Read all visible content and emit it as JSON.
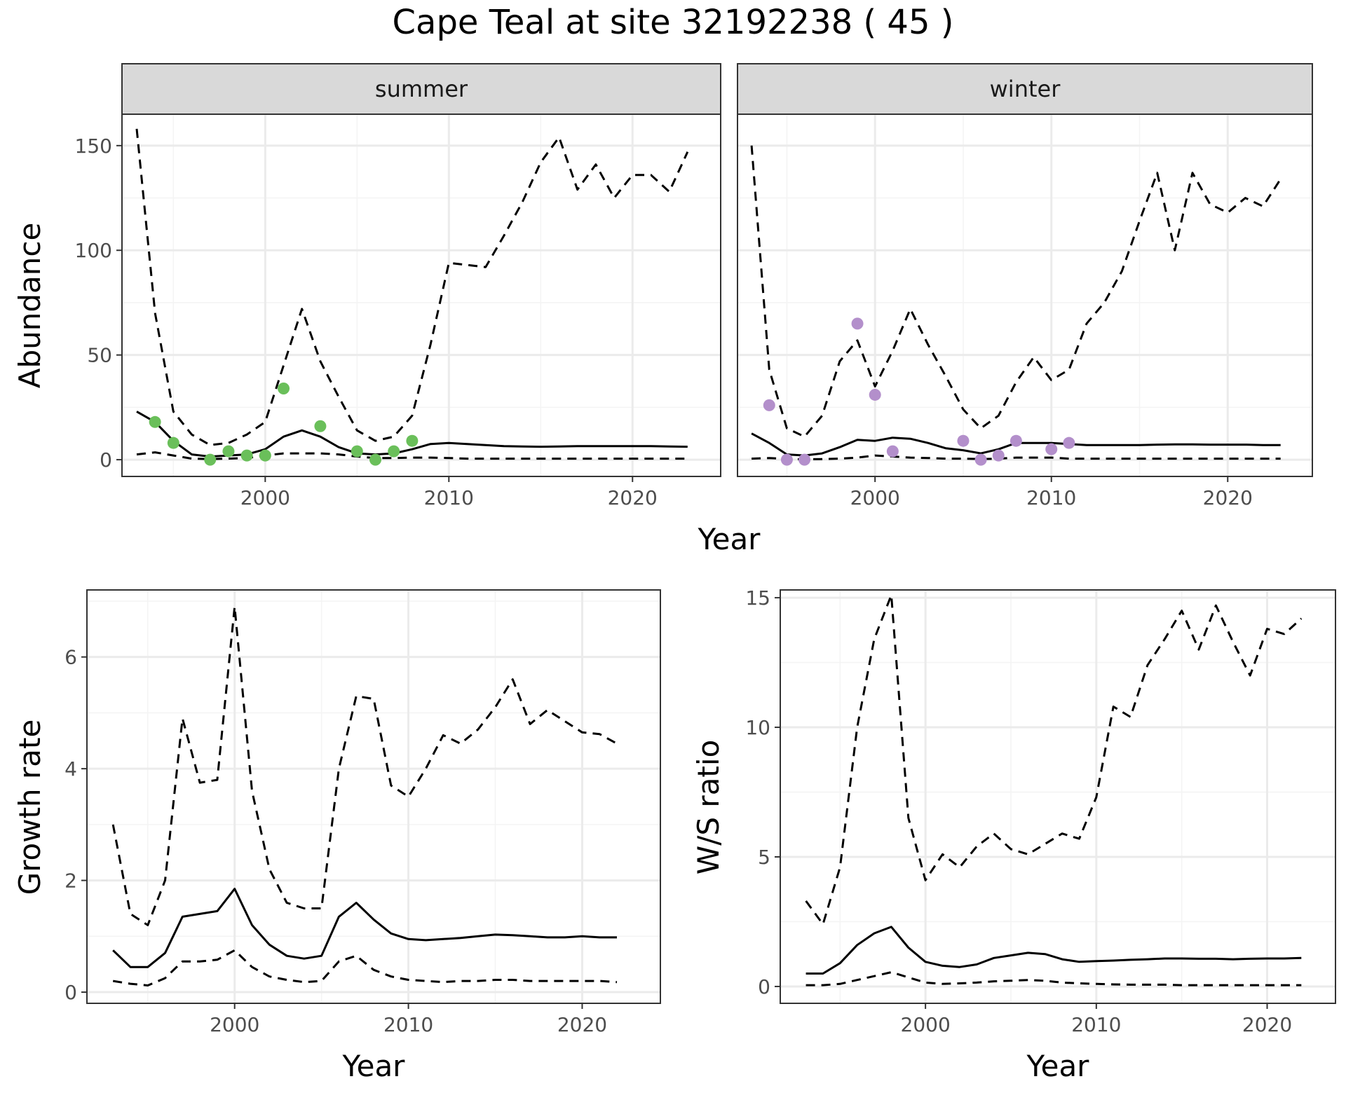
{
  "title": "Cape Teal at site 32192238 ( 45 )",
  "colors": {
    "summer_points": "#6ABF5A",
    "winter_points": "#B38FCB",
    "line": "#000000",
    "grid_major": "#EBEBEB",
    "grid_minor": "#F4F4F4",
    "strip_bg": "#D9D9D9",
    "panel_border": "#333333",
    "tick_text": "#4D4D4D"
  },
  "chart_data": [
    {
      "id": "summer",
      "type": "line",
      "strip_label": "summer",
      "xlabel": "Year",
      "ylabel": "Abundance",
      "xlim": [
        1992.2,
        2024.8
      ],
      "ylim": [
        -8,
        165
      ],
      "xticks": [
        2000,
        2010,
        2020
      ],
      "xticks_minor": [
        1995,
        2005,
        2015
      ],
      "yticks": [
        0,
        50,
        100,
        150
      ],
      "yticks_minor": [
        25,
        75,
        125
      ],
      "series": [
        {
          "name": "mean",
          "style": "solid",
          "x": [
            1993,
            1994,
            1995,
            1996,
            1997,
            1998,
            1999,
            2000,
            2001,
            2002,
            2003,
            2004,
            2005,
            2006,
            2007,
            2008,
            2009,
            2010,
            2011,
            2012,
            2013,
            2014,
            2015,
            2016,
            2017,
            2018,
            2019,
            2020,
            2021,
            2022,
            2023
          ],
          "y": [
            23,
            18,
            9,
            2.5,
            1.5,
            2,
            2.5,
            5,
            11,
            14,
            11,
            6,
            3,
            2.5,
            3,
            5,
            7.5,
            8,
            7.5,
            7,
            6.5,
            6.3,
            6.2,
            6.3,
            6.5,
            6.5,
            6.5,
            6.5,
            6.5,
            6.3,
            6.2
          ]
        },
        {
          "name": "upper",
          "style": "dashed",
          "x": [
            1993,
            1994,
            1995,
            1996,
            1997,
            1998,
            1999,
            2000,
            2001,
            2002,
            2003,
            2004,
            2005,
            2006,
            2007,
            2008,
            2009,
            2010,
            2011,
            2012,
            2013,
            2014,
            2015,
            2016,
            2017,
            2018,
            2019,
            2020,
            2021,
            2022,
            2023
          ],
          "y": [
            158,
            70,
            23,
            12,
            7,
            8,
            12,
            18,
            45,
            72,
            47,
            30,
            14,
            9,
            11,
            21,
            55,
            94,
            93,
            92,
            107,
            123,
            142,
            154,
            129,
            141,
            125,
            136,
            136,
            128,
            147
          ]
        },
        {
          "name": "lower",
          "style": "dashed",
          "x": [
            1993,
            1994,
            1995,
            1996,
            1997,
            1998,
            1999,
            2000,
            2001,
            2002,
            2003,
            2004,
            2005,
            2006,
            2007,
            2008,
            2009,
            2010,
            2011,
            2012,
            2013,
            2014,
            2015,
            2016,
            2017,
            2018,
            2019,
            2020,
            2021,
            2022,
            2023
          ],
          "y": [
            2.5,
            3.5,
            2,
            0.5,
            0.3,
            0.5,
            0.8,
            2,
            3,
            3,
            3,
            2.5,
            1.5,
            0.8,
            0.8,
            1,
            1,
            0.8,
            0.5,
            0.5,
            0.5,
            0.5,
            0.5,
            0.5,
            0.5,
            0.5,
            0.5,
            0.5,
            0.5,
            0.5,
            0.5
          ]
        }
      ],
      "points": {
        "x": [
          1994,
          1995,
          1997,
          1998,
          1999,
          2000,
          2001,
          2003,
          2005,
          2006,
          2007,
          2008
        ],
        "y": [
          18,
          8,
          0,
          4,
          2,
          2,
          34,
          16,
          4,
          0,
          4,
          9
        ]
      }
    },
    {
      "id": "winter",
      "type": "line",
      "strip_label": "winter",
      "xlabel": "Year",
      "ylabel": "",
      "xlim": [
        1992.2,
        2024.8
      ],
      "ylim": [
        -8,
        165
      ],
      "xticks": [
        2000,
        2010,
        2020
      ],
      "xticks_minor": [
        1995,
        2005,
        2015
      ],
      "yticks": [
        0,
        50,
        100,
        150
      ],
      "yticks_minor": [
        25,
        75,
        125
      ],
      "series": [
        {
          "name": "mean",
          "style": "solid",
          "x": [
            1993,
            1994,
            1995,
            1996,
            1997,
            1998,
            1999,
            2000,
            2001,
            2002,
            2003,
            2004,
            2005,
            2006,
            2007,
            2008,
            2009,
            2010,
            2011,
            2012,
            2013,
            2014,
            2015,
            2016,
            2017,
            2018,
            2019,
            2020,
            2021,
            2022,
            2023
          ],
          "y": [
            12.5,
            8,
            2.5,
            2,
            3,
            6,
            9.5,
            9,
            10.5,
            10,
            8,
            5.5,
            4.5,
            3,
            5,
            8,
            8,
            8,
            7.5,
            7,
            7,
            7,
            7,
            7.2,
            7.3,
            7.3,
            7.2,
            7.2,
            7.2,
            7,
            7
          ]
        },
        {
          "name": "upper",
          "style": "dashed",
          "x": [
            1993,
            1994,
            1995,
            1996,
            1997,
            1998,
            1999,
            2000,
            2001,
            2002,
            2003,
            2004,
            2005,
            2006,
            2007,
            2008,
            2009,
            2010,
            2011,
            2012,
            2013,
            2014,
            2015,
            2016,
            2017,
            2018,
            2019,
            2020,
            2021,
            2022,
            2023
          ],
          "y": [
            150,
            43,
            15,
            11,
            21,
            47,
            57,
            35,
            52,
            72,
            55,
            40,
            24,
            15,
            21,
            37,
            49,
            38,
            43,
            65,
            75,
            90,
            114,
            137,
            100,
            137,
            122,
            118,
            125,
            121,
            134
          ]
        },
        {
          "name": "lower",
          "style": "dashed",
          "x": [
            1993,
            1994,
            1995,
            1996,
            1997,
            1998,
            1999,
            2000,
            2001,
            2002,
            2003,
            2004,
            2005,
            2006,
            2007,
            2008,
            2009,
            2010,
            2011,
            2012,
            2013,
            2014,
            2015,
            2016,
            2017,
            2018,
            2019,
            2020,
            2021,
            2022,
            2023
          ],
          "y": [
            0.5,
            0.8,
            0.3,
            0.2,
            0.3,
            0.5,
            1,
            2,
            1.5,
            1,
            0.8,
            0.5,
            0.5,
            0.3,
            0.5,
            1,
            1,
            1,
            0.5,
            0.5,
            0.5,
            0.5,
            0.5,
            0.5,
            0.5,
            0.5,
            0.5,
            0.5,
            0.5,
            0.5,
            0.5
          ]
        }
      ],
      "points": {
        "x": [
          1994,
          1995,
          1996,
          1999,
          2000,
          2001,
          2005,
          2006,
          2007,
          2008,
          2010,
          2011
        ],
        "y": [
          26,
          0,
          0,
          65,
          31,
          4,
          9,
          0,
          2,
          9,
          5,
          8
        ]
      }
    },
    {
      "id": "growth",
      "type": "line",
      "strip_label": "",
      "xlabel": "Year",
      "ylabel": "Growth rate",
      "xlim": [
        1991.5,
        2024.5
      ],
      "ylim": [
        -0.2,
        7.2
      ],
      "xticks": [
        2000,
        2010,
        2020
      ],
      "xticks_minor": [
        1995,
        2005,
        2015
      ],
      "yticks": [
        0,
        2,
        4,
        6
      ],
      "yticks_minor": [
        1,
        3,
        5,
        7
      ],
      "series": [
        {
          "name": "mean",
          "style": "solid",
          "x": [
            1993,
            1994,
            1995,
            1996,
            1997,
            1998,
            1999,
            2000,
            2001,
            2002,
            2003,
            2004,
            2005,
            2006,
            2007,
            2008,
            2009,
            2010,
            2011,
            2012,
            2013,
            2014,
            2015,
            2016,
            2017,
            2018,
            2019,
            2020,
            2021,
            2022
          ],
          "y": [
            0.75,
            0.45,
            0.45,
            0.7,
            1.35,
            1.4,
            1.45,
            1.85,
            1.2,
            0.85,
            0.65,
            0.6,
            0.65,
            1.35,
            1.6,
            1.3,
            1.05,
            0.95,
            0.93,
            0.95,
            0.97,
            1,
            1.03,
            1.02,
            1,
            0.98,
            0.98,
            1,
            0.98,
            0.98
          ]
        },
        {
          "name": "upper",
          "style": "dashed",
          "x": [
            1993,
            1994,
            1995,
            1996,
            1997,
            1998,
            1999,
            2000,
            2001,
            2002,
            2003,
            2004,
            2005,
            2006,
            2007,
            2008,
            2009,
            2010,
            2011,
            2012,
            2013,
            2014,
            2015,
            2016,
            2017,
            2018,
            2019,
            2020,
            2021,
            2022
          ],
          "y": [
            3,
            1.4,
            1.2,
            2,
            4.9,
            3.75,
            3.8,
            6.9,
            3.6,
            2.2,
            1.6,
            1.5,
            1.5,
            4,
            5.3,
            5.25,
            3.7,
            3.5,
            4,
            4.6,
            4.45,
            4.7,
            5.1,
            5.6,
            4.8,
            5.05,
            4.85,
            4.65,
            4.62,
            4.45
          ]
        },
        {
          "name": "lower",
          "style": "dashed",
          "x": [
            1993,
            1994,
            1995,
            1996,
            1997,
            1998,
            1999,
            2000,
            2001,
            2002,
            2003,
            2004,
            2005,
            2006,
            2007,
            2008,
            2009,
            2010,
            2011,
            2012,
            2013,
            2014,
            2015,
            2016,
            2017,
            2018,
            2019,
            2020,
            2021,
            2022
          ],
          "y": [
            0.2,
            0.15,
            0.12,
            0.25,
            0.55,
            0.55,
            0.58,
            0.75,
            0.45,
            0.28,
            0.22,
            0.18,
            0.2,
            0.55,
            0.65,
            0.4,
            0.28,
            0.22,
            0.2,
            0.18,
            0.2,
            0.2,
            0.22,
            0.22,
            0.2,
            0.2,
            0.2,
            0.2,
            0.2,
            0.18
          ]
        }
      ]
    },
    {
      "id": "ratio",
      "type": "line",
      "strip_label": "",
      "xlabel": "Year",
      "ylabel": "W/S ratio",
      "xlim": [
        1991.5,
        2024
      ],
      "ylim": [
        -0.65,
        15.3
      ],
      "xticks": [
        2000,
        2010,
        2020
      ],
      "xticks_minor": [
        1995,
        2005,
        2015
      ],
      "yticks": [
        0,
        5,
        10,
        15
      ],
      "yticks_minor": [
        2.5,
        7.5,
        12.5
      ],
      "series": [
        {
          "name": "mean",
          "style": "solid",
          "x": [
            1993,
            1994,
            1995,
            1996,
            1997,
            1998,
            1999,
            2000,
            2001,
            2002,
            2003,
            2004,
            2005,
            2006,
            2007,
            2008,
            2009,
            2010,
            2011,
            2012,
            2013,
            2014,
            2015,
            2016,
            2017,
            2018,
            2019,
            2020,
            2021,
            2022
          ],
          "y": [
            0.5,
            0.5,
            0.9,
            1.6,
            2.05,
            2.3,
            1.5,
            0.95,
            0.8,
            0.75,
            0.85,
            1.1,
            1.2,
            1.3,
            1.25,
            1.05,
            0.95,
            0.98,
            1,
            1.03,
            1.05,
            1.08,
            1.08,
            1.07,
            1.07,
            1.05,
            1.07,
            1.08,
            1.08,
            1.1
          ]
        },
        {
          "name": "upper",
          "style": "dashed",
          "x": [
            1993,
            1994,
            1995,
            1996,
            1997,
            1998,
            1999,
            2000,
            2001,
            2002,
            2003,
            2004,
            2005,
            2006,
            2007,
            2008,
            2009,
            2010,
            2011,
            2012,
            2013,
            2014,
            2015,
            2016,
            2017,
            2018,
            2019,
            2020,
            2021,
            2022
          ],
          "y": [
            3.3,
            2.4,
            4.6,
            10,
            13.4,
            15.1,
            6.5,
            4.1,
            5.1,
            4.6,
            5.4,
            5.9,
            5.3,
            5.1,
            5.5,
            5.9,
            5.7,
            7.3,
            10.8,
            10.4,
            12.4,
            13.4,
            14.5,
            13,
            14.7,
            13.3,
            12,
            13.8,
            13.6,
            14.2
          ]
        },
        {
          "name": "lower",
          "style": "dashed",
          "x": [
            1993,
            1994,
            1995,
            1996,
            1997,
            1998,
            1999,
            2000,
            2001,
            2002,
            2003,
            2004,
            2005,
            2006,
            2007,
            2008,
            2009,
            2010,
            2011,
            2012,
            2013,
            2014,
            2015,
            2016,
            2017,
            2018,
            2019,
            2020,
            2021,
            2022
          ],
          "y": [
            0.05,
            0.05,
            0.1,
            0.25,
            0.4,
            0.55,
            0.35,
            0.15,
            0.1,
            0.12,
            0.15,
            0.2,
            0.22,
            0.25,
            0.22,
            0.15,
            0.12,
            0.1,
            0.08,
            0.07,
            0.07,
            0.07,
            0.05,
            0.05,
            0.05,
            0.05,
            0.05,
            0.05,
            0.05,
            0.05
          ]
        }
      ]
    }
  ]
}
